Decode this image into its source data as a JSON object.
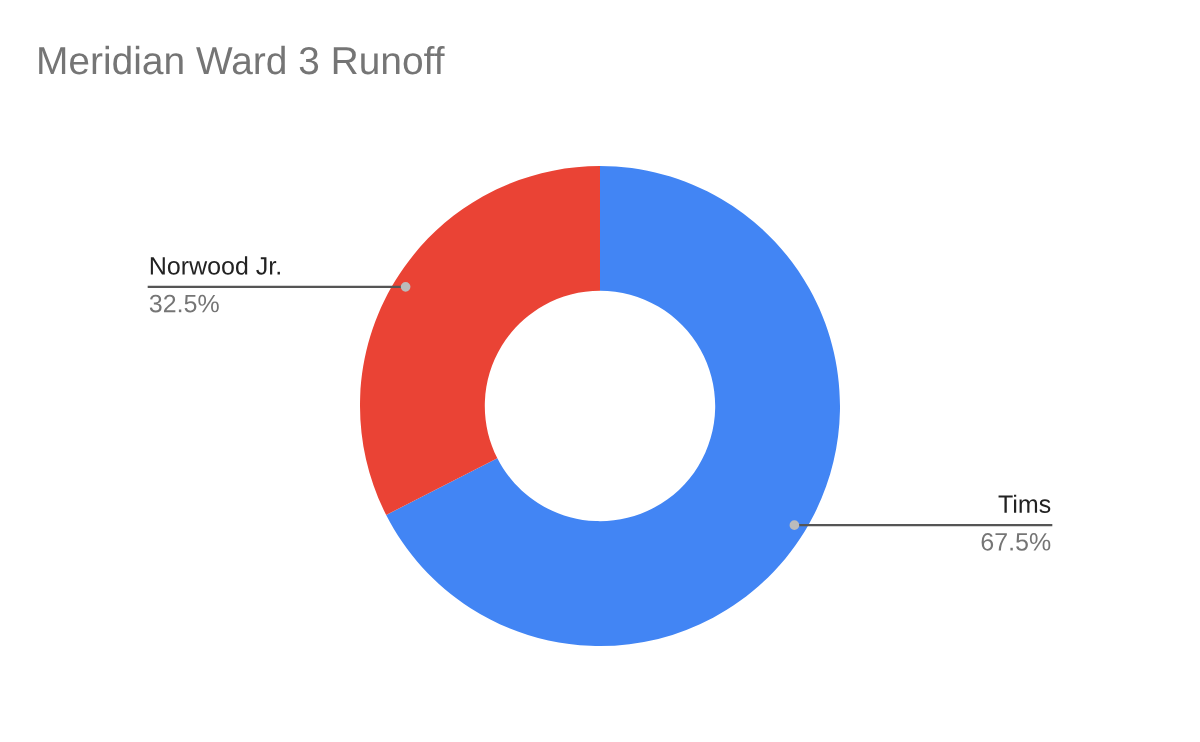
{
  "chart_data": {
    "type": "donut",
    "title": "Meridian Ward 3 Runoff",
    "categories": [
      "Tims",
      "Norwood Jr."
    ],
    "values": [
      67.5,
      32.5
    ],
    "colors": [
      "#4285f4",
      "#ea4335"
    ],
    "value_labels": [
      "67.5%",
      "32.5%"
    ]
  }
}
